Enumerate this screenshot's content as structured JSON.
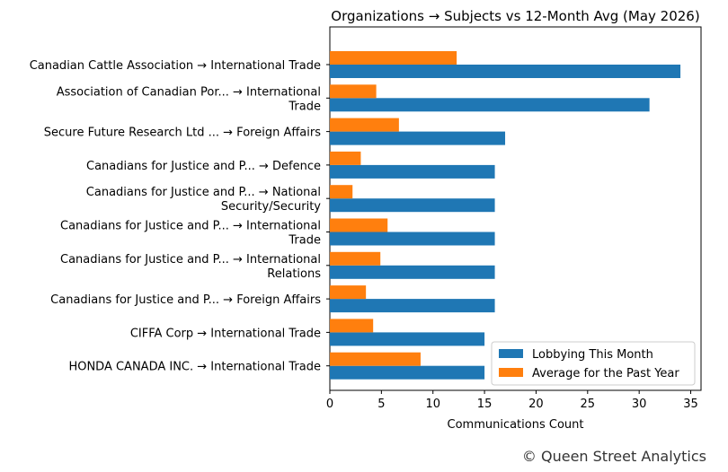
{
  "footer": "© Queen Street Analytics",
  "chart_data": {
    "type": "bar",
    "orientation": "horizontal",
    "title": "Organizations → Subjects vs 12-Month Avg (May 2026)",
    "xlabel": "Communications Count",
    "ylabel": "",
    "xlim": [
      0,
      36
    ],
    "xticks": [
      0,
      5,
      10,
      15,
      20,
      25,
      30,
      35
    ],
    "legend_position": "lower-right",
    "categories": [
      "Canadian Cattle Association → International Trade",
      "Association of Canadian Por... → International\nTrade",
      "Secure Future Research Ltd ... → Foreign Affairs",
      "Canadians for Justice and P... → Defence",
      "Canadians for Justice and P... → National\nSecurity/Security",
      "Canadians for Justice and P... → International\nTrade",
      "Canadians for Justice and P... → International\nRelations",
      "Canadians for Justice and P... → Foreign Affairs",
      "CIFFA Corp → International Trade",
      "HONDA CANADA INC. → International Trade"
    ],
    "series": [
      {
        "name": "Lobbying This Month",
        "color": "#1f77b4",
        "values": [
          34,
          31,
          17,
          16,
          16,
          16,
          16,
          16,
          15,
          15
        ]
      },
      {
        "name": "Average for the Past Year",
        "color": "#ff7f0e",
        "values": [
          12.3,
          4.5,
          6.7,
          3.0,
          2.2,
          5.6,
          4.9,
          3.5,
          4.2,
          8.8
        ]
      }
    ]
  }
}
